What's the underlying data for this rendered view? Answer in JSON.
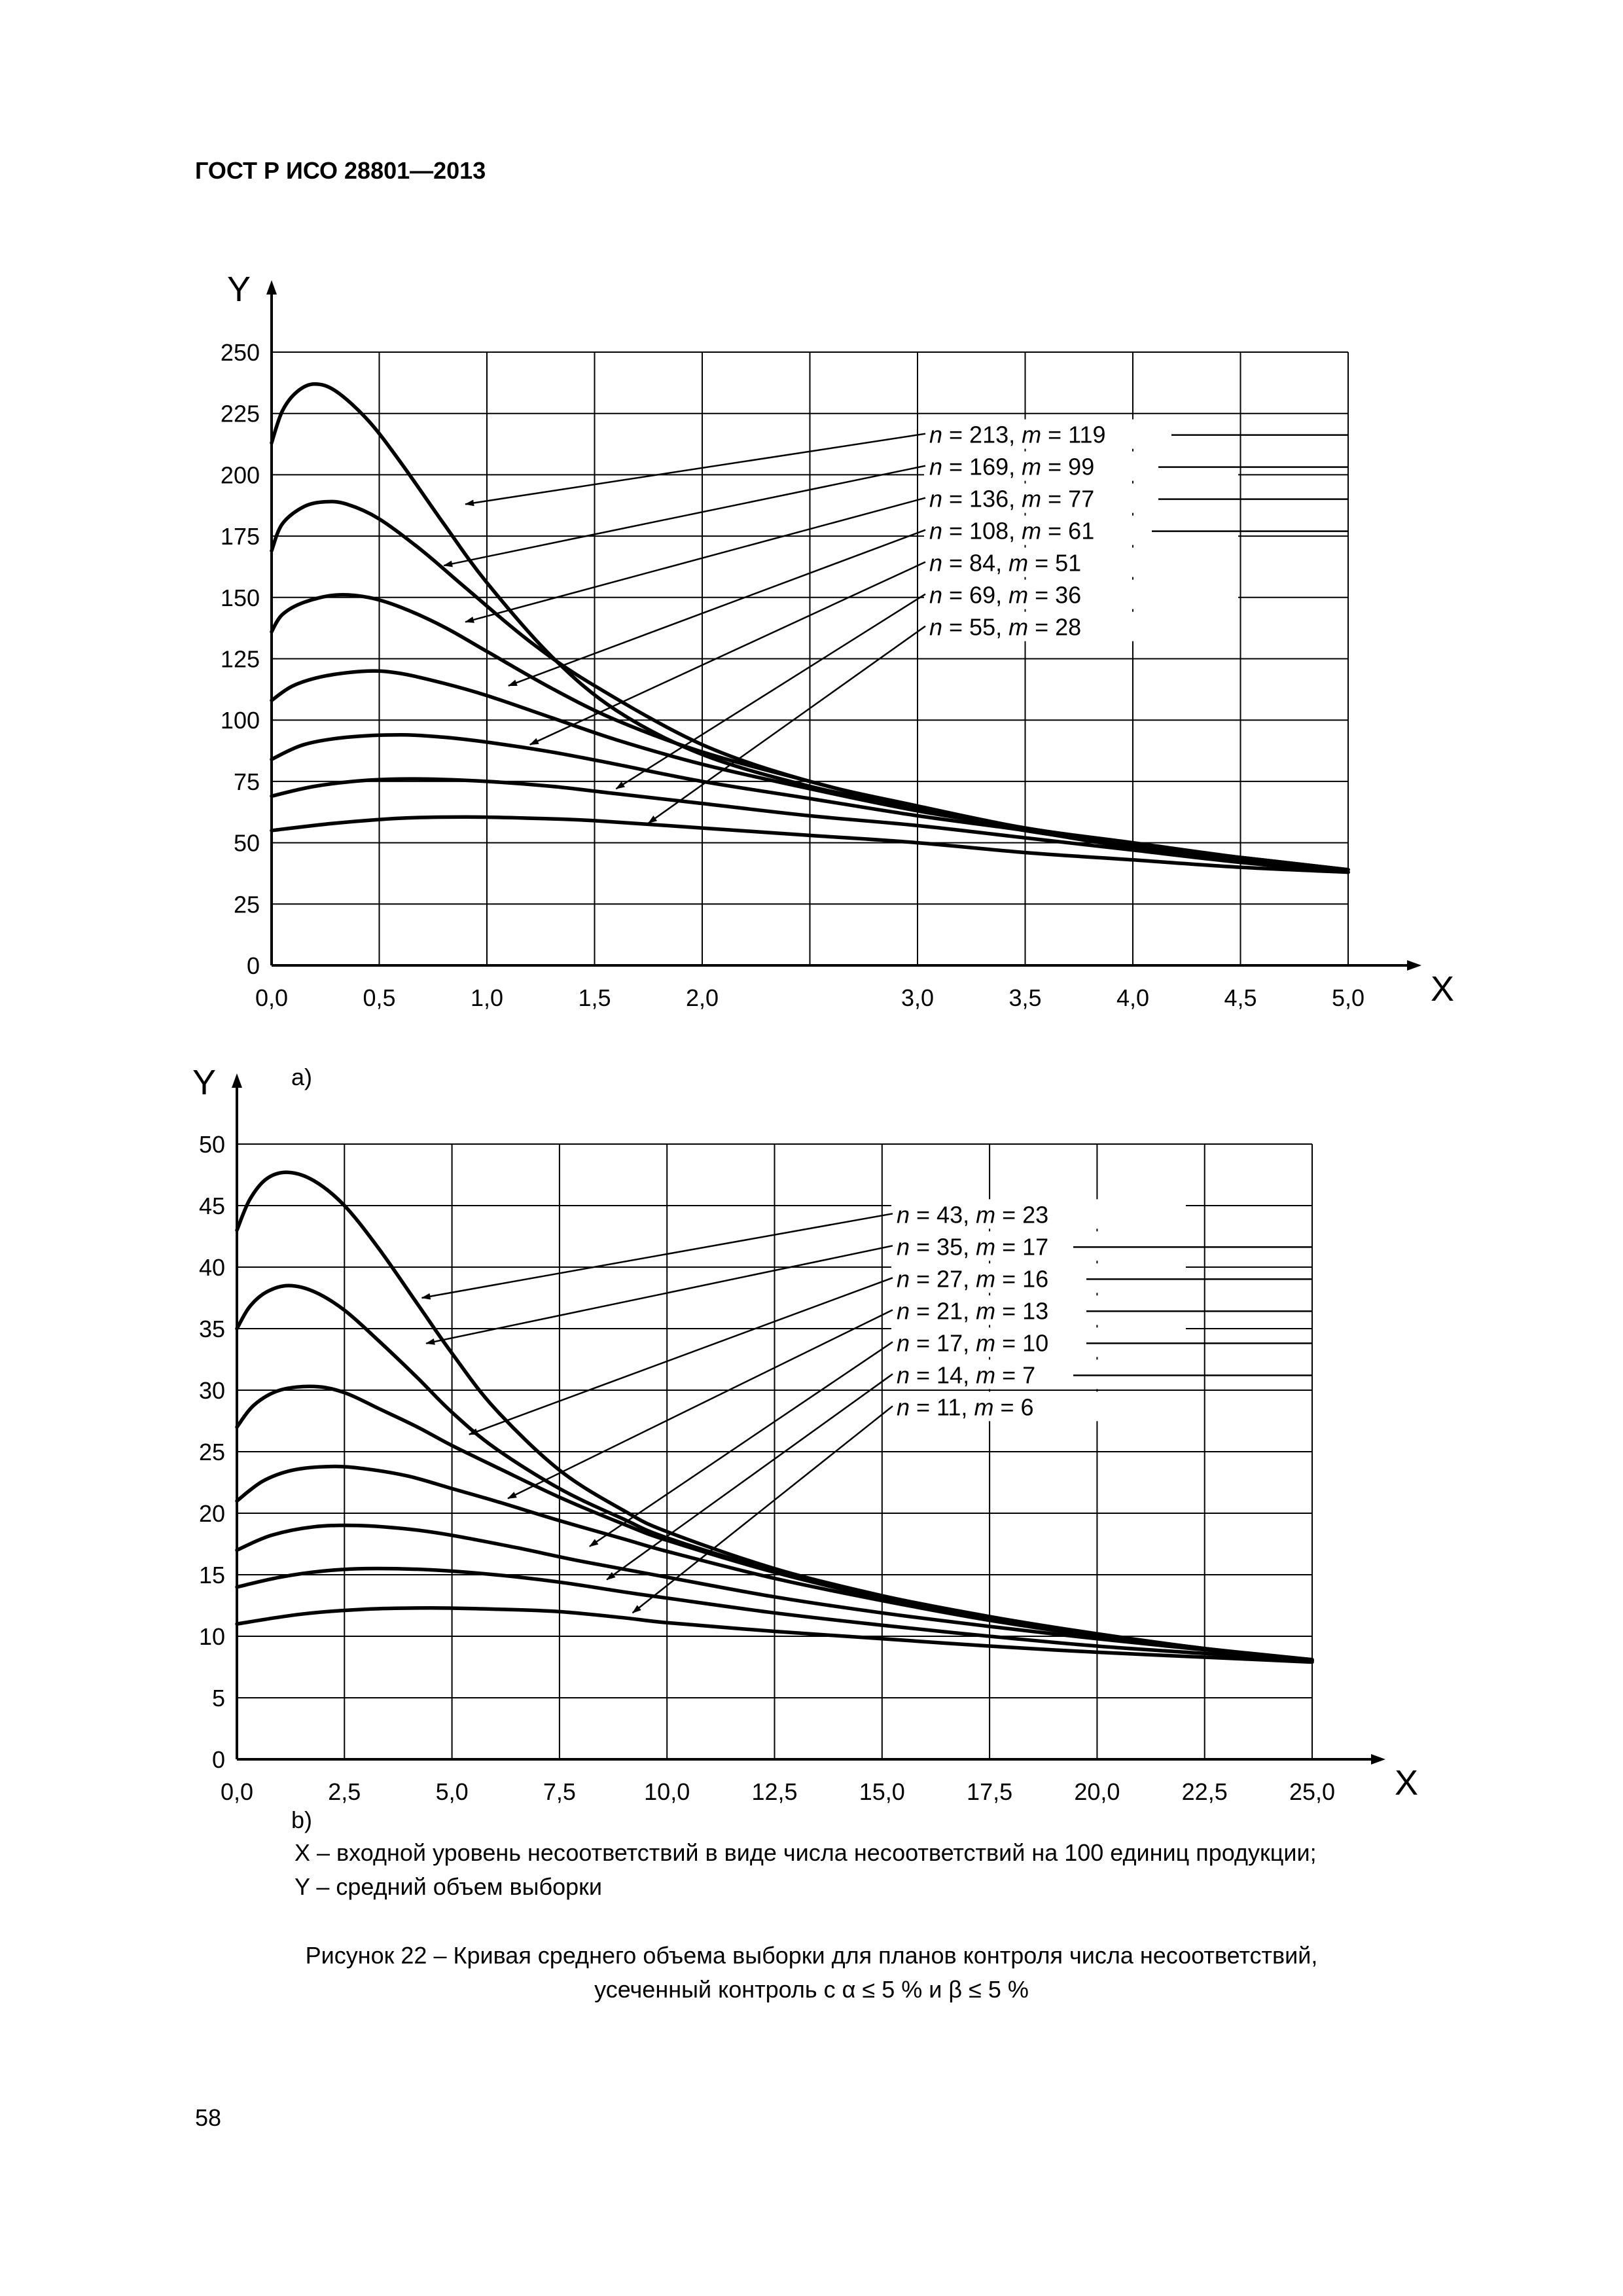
{
  "header": {
    "doc_code": "ГОСТ Р ИСО 28801—2013"
  },
  "chart_data": [
    {
      "type": "line",
      "panel_label": "a)",
      "xlabel": "X",
      "ylabel": "Y",
      "xlim": [
        0,
        5
      ],
      "ylim": [
        0,
        250
      ],
      "x_ticks": [
        "0,0",
        "0,5",
        "1,0",
        "1,5",
        "2,0",
        "3,0",
        "3,5",
        "4,0",
        "4,5",
        "5,0"
      ],
      "x_tick_values": [
        0,
        0.5,
        1,
        1.5,
        2,
        3,
        3.5,
        4,
        4.5,
        5
      ],
      "x_grid": [
        0.5,
        1,
        1.5,
        2,
        2.5,
        3,
        3.5,
        4,
        4.5,
        5
      ],
      "y_ticks": [
        "0",
        "25",
        "50",
        "75",
        "100",
        "125",
        "150",
        "175",
        "200",
        "225",
        "250"
      ],
      "y_tick_values": [
        0,
        25,
        50,
        75,
        100,
        125,
        150,
        175,
        200,
        225,
        250
      ],
      "grid": true,
      "annotations": [
        {
          "label": "n = 213, m = 119",
          "n": "213",
          "m": "119"
        },
        {
          "label": "n = 169, m = 99",
          "n": "169",
          "m": "99"
        },
        {
          "label": "n = 136, m = 77",
          "n": "136",
          "m": "77"
        },
        {
          "label": "n = 108, m = 61",
          "n": "108",
          "m": "61"
        },
        {
          "label": "n = 84, m = 51",
          "n": "84",
          "m": "51"
        },
        {
          "label": "n = 69, m = 36",
          "n": "69",
          "m": "36"
        },
        {
          "label": "n = 55, m = 28",
          "n": "55",
          "m": "28"
        }
      ],
      "arrow_targets": [
        [
          0.9,
          188
        ],
        [
          0.8,
          163
        ],
        [
          0.9,
          140
        ],
        [
          1.1,
          114
        ],
        [
          1.2,
          90
        ],
        [
          1.6,
          72
        ],
        [
          1.75,
          58
        ]
      ],
      "series": [
        {
          "x": [
            0,
            0.05,
            0.12,
            0.2,
            0.3,
            0.45,
            0.6,
            0.8,
            1.0,
            1.3,
            1.6,
            2.0,
            2.5,
            3.0,
            3.5,
            4.0,
            4.5,
            5.0
          ],
          "y": [
            213,
            226,
            234,
            237,
            234,
            222,
            205,
            180,
            156,
            126,
            104,
            86,
            73,
            64,
            55,
            49,
            43,
            38
          ]
        },
        {
          "x": [
            0,
            0.05,
            0.15,
            0.25,
            0.35,
            0.5,
            0.7,
            0.9,
            1.2,
            1.5,
            2.0,
            2.5,
            3.0,
            3.5,
            4.0,
            4.5,
            5.0
          ],
          "y": [
            169,
            180,
            187,
            189,
            188,
            182,
            169,
            154,
            132,
            114,
            90,
            75,
            65,
            56,
            50,
            44,
            39
          ]
        },
        {
          "x": [
            0,
            0.05,
            0.15,
            0.3,
            0.45,
            0.6,
            0.8,
            1.0,
            1.3,
            1.6,
            2.0,
            2.5,
            3.0,
            3.5,
            4.0,
            4.5,
            5.0
          ],
          "y": [
            136,
            143,
            148,
            151,
            150,
            146,
            138,
            128,
            113,
            100,
            87,
            75,
            64,
            56,
            49,
            44,
            39
          ]
        },
        {
          "x": [
            0,
            0.1,
            0.25,
            0.45,
            0.6,
            0.8,
            1.0,
            1.3,
            1.6,
            2.0,
            2.5,
            3.0,
            3.5,
            4.0,
            4.5,
            5.0
          ],
          "y": [
            108,
            114,
            118,
            120,
            119,
            115,
            110,
            101,
            92,
            82,
            72,
            63,
            56,
            49,
            44,
            39
          ]
        },
        {
          "x": [
            0,
            0.15,
            0.35,
            0.6,
            0.8,
            1.0,
            1.3,
            1.6,
            2.0,
            2.5,
            3.0,
            3.5,
            4.0,
            4.5,
            5.0
          ],
          "y": [
            84,
            90,
            93,
            94,
            93,
            91,
            87,
            82,
            75,
            68,
            61,
            55,
            48,
            43,
            39
          ]
        },
        {
          "x": [
            0,
            0.2,
            0.45,
            0.7,
            1.0,
            1.3,
            1.6,
            2.0,
            2.5,
            3.0,
            3.5,
            4.0,
            4.5,
            5.0
          ],
          "y": [
            69,
            73,
            75.5,
            76,
            75,
            73,
            70,
            66,
            61,
            57,
            52,
            47,
            42,
            38
          ]
        },
        {
          "x": [
            0,
            0.3,
            0.6,
            0.9,
            1.2,
            1.5,
            2.0,
            2.5,
            3.0,
            3.5,
            4.0,
            4.5,
            5.0
          ],
          "y": [
            55,
            58,
            60,
            60.5,
            60,
            59,
            56,
            53,
            50,
            46,
            43,
            40,
            38
          ]
        }
      ]
    },
    {
      "type": "line",
      "panel_label": "b)",
      "xlabel": "X",
      "ylabel": "Y",
      "xlim": [
        0,
        25
      ],
      "ylim": [
        0,
        50
      ],
      "x_ticks": [
        "0,0",
        "2,5",
        "5,0",
        "7,5",
        "10,0",
        "12,5",
        "15,0",
        "17,5",
        "20,0",
        "22,5",
        "25,0"
      ],
      "x_tick_values": [
        0,
        2.5,
        5,
        7.5,
        10,
        12.5,
        15,
        17.5,
        20,
        22.5,
        25
      ],
      "x_grid": [
        2.5,
        5,
        7.5,
        10,
        12.5,
        15,
        17.5,
        20,
        22.5,
        25
      ],
      "y_ticks": [
        "0",
        "5",
        "10",
        "15",
        "20",
        "25",
        "30",
        "35",
        "40",
        "45",
        "50"
      ],
      "y_tick_values": [
        0,
        5,
        10,
        15,
        20,
        25,
        30,
        35,
        40,
        45,
        50
      ],
      "grid": true,
      "annotations": [
        {
          "label": "n = 43, m = 23",
          "n": "43",
          "m": "23"
        },
        {
          "label": "n = 35, m = 17",
          "n": "35",
          "m": "17"
        },
        {
          "label": "n = 27, m = 16",
          "n": "27",
          "m": "16"
        },
        {
          "label": "n = 21, m = 13",
          "n": "21",
          "m": "13"
        },
        {
          "label": "n = 17, m = 10",
          "n": "17",
          "m": "10"
        },
        {
          "label": "n = 14, m = 7",
          "n": "14",
          "m": "7"
        },
        {
          "label": "n = 11, m = 6",
          "n": "11",
          "m": "6"
        }
      ],
      "arrow_targets": [
        [
          4.3,
          37.5
        ],
        [
          4.4,
          33.8
        ],
        [
          5.4,
          26.4
        ],
        [
          6.3,
          21.2
        ],
        [
          8.2,
          17.3
        ],
        [
          8.6,
          14.6
        ],
        [
          9.2,
          11.9
        ]
      ],
      "series": [
        {
          "x": [
            0,
            0.3,
            0.7,
            1.2,
            1.8,
            2.5,
            3.3,
            4.2,
            5.0,
            6.0,
            7.5,
            9.0,
            10.0,
            12.5,
            15.0,
            17.5,
            20.0,
            22.5,
            25.0
          ],
          "y": [
            43,
            45.5,
            47.2,
            47.7,
            47,
            45,
            41.5,
            37,
            33,
            28.5,
            23.5,
            20.2,
            18.5,
            15.5,
            13.3,
            11.6,
            10.2,
            9,
            8
          ]
        },
        {
          "x": [
            0,
            0.3,
            0.7,
            1.2,
            1.8,
            2.5,
            3.3,
            4.2,
            5.0,
            6.0,
            7.5,
            9.0,
            10.0,
            12.5,
            15.0,
            17.5,
            20.0,
            22.5,
            25.0
          ],
          "y": [
            35,
            36.8,
            38,
            38.5,
            38,
            36.5,
            34,
            31,
            28.2,
            25.3,
            22,
            19.5,
            18,
            15.3,
            13.2,
            11.5,
            10.1,
            9,
            8
          ]
        },
        {
          "x": [
            0,
            0.4,
            1.0,
            1.8,
            2.5,
            3.3,
            4.2,
            5.0,
            6.0,
            7.5,
            9.0,
            10.0,
            12.5,
            15.0,
            17.5,
            20.0,
            22.5,
            25.0
          ],
          "y": [
            27,
            28.8,
            30,
            30.3,
            29.8,
            28.5,
            27,
            25.5,
            23.8,
            21.3,
            19.1,
            17.8,
            15.2,
            13.1,
            11.4,
            10.1,
            9,
            8
          ]
        },
        {
          "x": [
            0,
            0.6,
            1.3,
            2.2,
            3.0,
            4.0,
            5.0,
            6.0,
            7.5,
            9.0,
            10.0,
            12.5,
            15.0,
            17.5,
            20.0,
            22.5,
            25.0
          ],
          "y": [
            21,
            22.6,
            23.5,
            23.8,
            23.6,
            23,
            22,
            21,
            19.4,
            17.9,
            16.9,
            14.7,
            12.9,
            11.3,
            10,
            9,
            8.1
          ]
        },
        {
          "x": [
            0,
            0.8,
            1.8,
            2.8,
            4.0,
            5.0,
            6.5,
            8.0,
            10.0,
            12.5,
            15.0,
            17.5,
            20.0,
            22.5,
            25.0
          ],
          "y": [
            17,
            18.2,
            18.9,
            19,
            18.7,
            18.2,
            17.2,
            16.1,
            14.8,
            13.2,
            11.9,
            10.8,
            9.8,
            8.9,
            8.1
          ]
        },
        {
          "x": [
            0,
            1.0,
            2.0,
            3.0,
            4.5,
            6.0,
            7.5,
            9.0,
            10.0,
            12.5,
            15.0,
            17.5,
            20.0,
            22.5,
            25.0
          ],
          "y": [
            14,
            14.8,
            15.3,
            15.5,
            15.4,
            15,
            14.4,
            13.6,
            13.1,
            11.9,
            10.9,
            10,
            9.2,
            8.6,
            8
          ]
        },
        {
          "x": [
            0,
            1.5,
            3.0,
            4.5,
            6.0,
            7.5,
            9.0,
            10.0,
            12.5,
            15.0,
            17.5,
            20.0,
            22.5,
            25.0
          ],
          "y": [
            11,
            11.8,
            12.2,
            12.3,
            12.2,
            12,
            11.5,
            11.1,
            10.4,
            9.8,
            9.2,
            8.7,
            8.3,
            7.9
          ]
        }
      ]
    }
  ],
  "legend": {
    "x_desc": "X – входной уровень несоответствий в виде числа несоответствий на 100 единиц продукции;",
    "y_desc": "Y – средний объем выборки"
  },
  "caption": {
    "line1": "Рисунок 22 – Кривая среднего объема выборки для планов контроля числа несоответствий,",
    "line2": "усеченный контроль с α ≤ 5 % и β ≤ 5 %"
  },
  "page_number": "58"
}
